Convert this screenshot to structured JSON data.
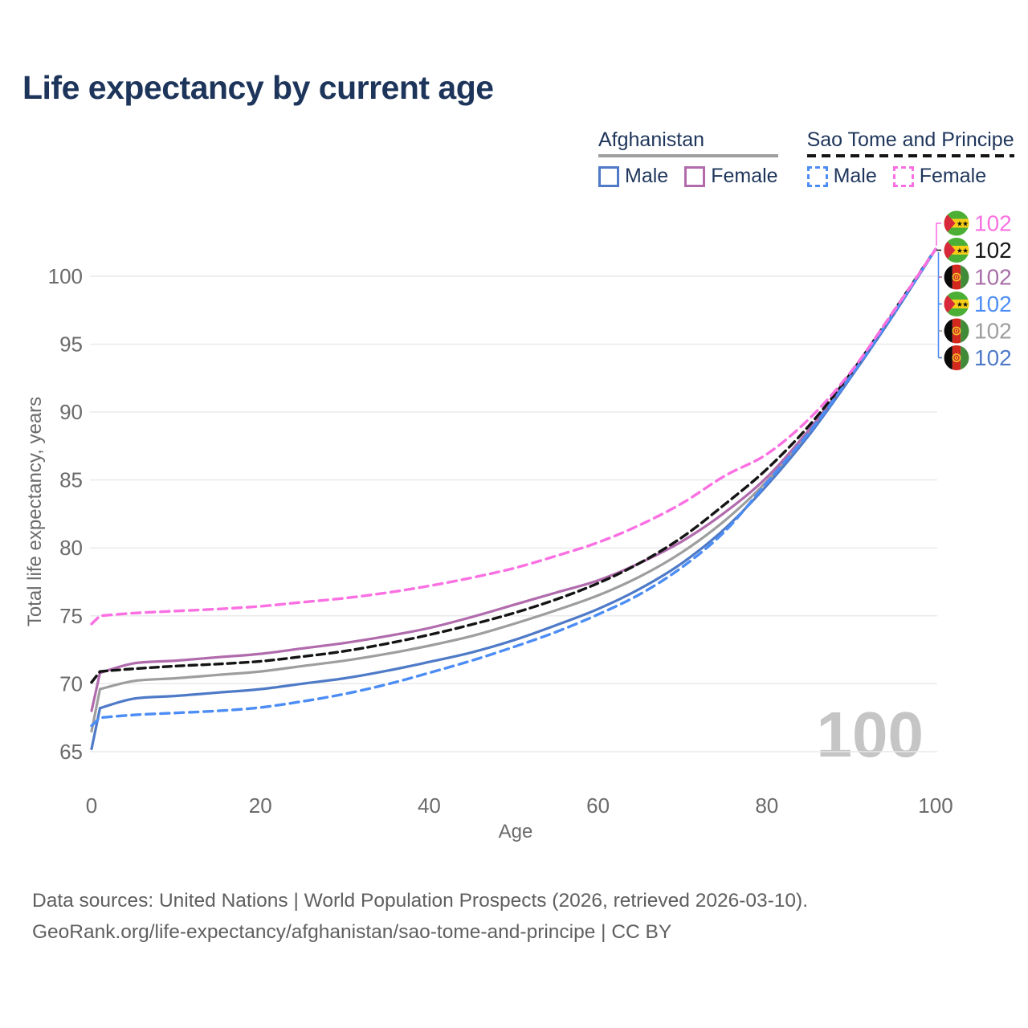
{
  "title": "Life expectancy by current age",
  "legend": {
    "groups": [
      {
        "label": "Afghanistan",
        "underline": "solid",
        "underline_color": "#9e9e9e",
        "items": [
          {
            "label": "Male",
            "color": "#4e7ac7",
            "dashed": false
          },
          {
            "label": "Female",
            "color": "#b16bad",
            "dashed": false
          }
        ]
      },
      {
        "label": "Sao Tome and Principe",
        "underline": "dashed",
        "underline_color": "#141414",
        "items": [
          {
            "label": "Male",
            "color": "#4c8df5",
            "dashed": true
          },
          {
            "label": "Female",
            "color": "#fa70e2",
            "dashed": true
          }
        ]
      }
    ]
  },
  "chart_data": {
    "type": "line",
    "title": "Life expectancy by current age",
    "xlabel": "Age",
    "ylabel": "Total life expectancy, years",
    "x_ticks": [
      0,
      20,
      40,
      60,
      80,
      100
    ],
    "y_ticks": [
      65,
      70,
      75,
      80,
      85,
      90,
      95,
      100
    ],
    "xlim": [
      0,
      100
    ],
    "ylim": [
      63.5,
      103.5
    ],
    "grid": true,
    "legend_position": "top-right",
    "watermark": "100",
    "x": [
      0,
      1,
      5,
      10,
      15,
      20,
      25,
      30,
      35,
      40,
      45,
      50,
      55,
      60,
      65,
      70,
      75,
      80,
      85,
      90,
      95,
      100
    ],
    "series": [
      {
        "name": "Afghanistan Combined",
        "color": "#9e9e9e",
        "dash": "solid",
        "values": [
          66.5,
          69.6,
          70.2,
          70.4,
          70.65,
          70.9,
          71.3,
          71.7,
          72.2,
          72.8,
          73.5,
          74.4,
          75.4,
          76.5,
          77.9,
          79.7,
          82.0,
          84.9,
          88.5,
          92.65,
          97.2,
          102
        ]
      },
      {
        "name": "Afghanistan Female",
        "color": "#b16bad",
        "dash": "solid",
        "values": [
          68.0,
          70.8,
          71.5,
          71.7,
          71.95,
          72.2,
          72.6,
          73.0,
          73.5,
          74.1,
          74.9,
          75.8,
          76.7,
          77.6,
          78.9,
          80.5,
          82.6,
          85.2,
          88.7,
          92.8,
          97.3,
          102
        ]
      },
      {
        "name": "Afghanistan Male",
        "color": "#4e7ac7",
        "dash": "solid",
        "values": [
          65.2,
          68.2,
          68.9,
          69.1,
          69.35,
          69.6,
          70.0,
          70.4,
          70.95,
          71.6,
          72.3,
          73.2,
          74.3,
          75.5,
          77.0,
          78.9,
          81.4,
          84.6,
          88.3,
          92.6,
          97.15,
          102
        ]
      },
      {
        "name": "Sao Tome and Principe Combined",
        "color": "#141414",
        "dash": "dashed",
        "values": [
          70.1,
          70.9,
          71.1,
          71.3,
          71.45,
          71.65,
          72.0,
          72.4,
          72.95,
          73.6,
          74.35,
          75.2,
          76.2,
          77.4,
          78.9,
          80.8,
          83.2,
          85.8,
          89.0,
          92.9,
          97.4,
          102
        ]
      },
      {
        "name": "Sao Tome and Principe Male",
        "color": "#4c8df5",
        "dash": "dashed",
        "values": [
          66.9,
          67.5,
          67.7,
          67.85,
          68.0,
          68.25,
          68.7,
          69.25,
          69.95,
          70.8,
          71.7,
          72.7,
          73.8,
          75.1,
          76.6,
          78.6,
          81.2,
          84.8,
          88.5,
          92.7,
          97.25,
          102
        ]
      },
      {
        "name": "Sao Tome and Principe Female",
        "color": "#fa70e2",
        "dash": "dashed",
        "values": [
          74.4,
          75.0,
          75.2,
          75.35,
          75.5,
          75.7,
          76.0,
          76.3,
          76.7,
          77.2,
          77.8,
          78.5,
          79.4,
          80.4,
          81.7,
          83.3,
          85.3,
          86.9,
          89.5,
          93.0,
          97.4,
          102
        ]
      }
    ],
    "end_labels": [
      {
        "value": "102",
        "color": "#fa70e2",
        "flag": "sao-tome-and-principe",
        "series": "Sao Tome and Principe Female"
      },
      {
        "value": "102",
        "color": "#141414",
        "flag": "sao-tome-and-principe",
        "series": "Sao Tome and Principe Combined"
      },
      {
        "value": "102",
        "color": "#a86fa8",
        "flag": "afghanistan",
        "series": "Afghanistan Female"
      },
      {
        "value": "102",
        "color": "#4c8df5",
        "flag": "sao-tome-and-principe",
        "series": "Sao Tome and Principe Male"
      },
      {
        "value": "102",
        "color": "#9e9e9e",
        "flag": "afghanistan",
        "series": "Afghanistan Combined"
      },
      {
        "value": "102",
        "color": "#4e7ac7",
        "flag": "afghanistan",
        "series": "Afghanistan Male"
      }
    ]
  },
  "footer": {
    "line1": "Data sources: United Nations | World Population Prospects (2026, retrieved 2026-03-10).",
    "line2": "GeoRank.org/life-expectancy/afghanistan/sao-tome-and-principe | CC BY"
  }
}
